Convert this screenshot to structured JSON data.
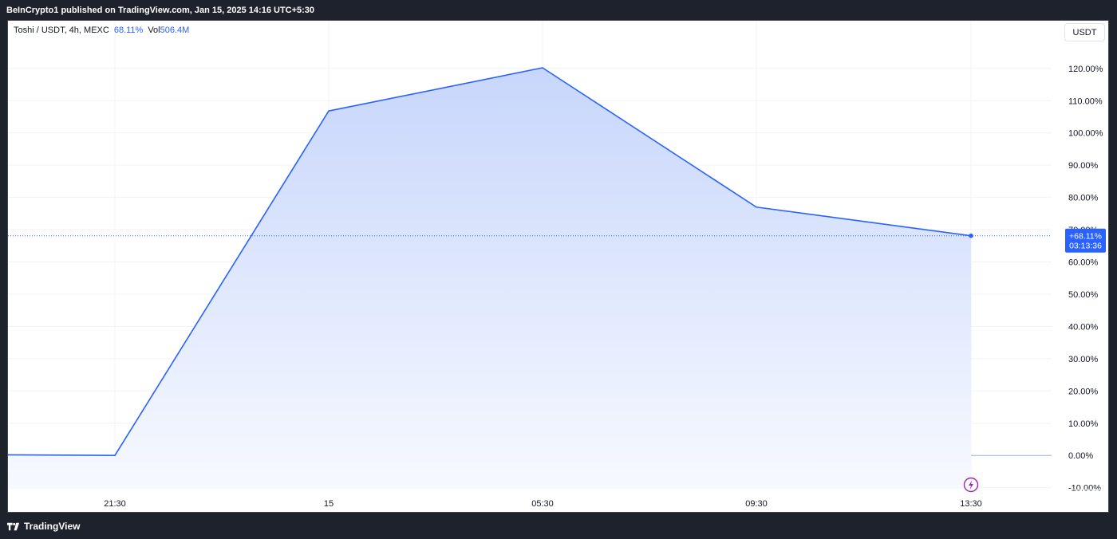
{
  "header": {
    "published_text": "BeInCrypto1 published on TradingView.com, Jan 15, 2025 14:16 UTC+5:30"
  },
  "legend": {
    "symbol": "Toshi / USDT, 4h, MEXC",
    "change": "68.11%",
    "vol_label": "Vol",
    "vol_value": "506.4M"
  },
  "currency_button": "USDT",
  "price_label": {
    "value": "+68.11%",
    "countdown": "03:13:36"
  },
  "footer": {
    "brand": "TradingView"
  },
  "colors": {
    "line": "#2962ff",
    "area_top": "#c7d6fb",
    "area_bottom": "#f7f9ff",
    "badge": "#2962ff",
    "event_icon": "#9c27b0"
  },
  "event_icon": "lightning-icon",
  "chart_data": {
    "type": "area",
    "x": [
      "",
      "21:30",
      "15",
      "05:30",
      "09:30",
      "13:30"
    ],
    "values": [
      0.2,
      0.0,
      106.8,
      120.2,
      77.0,
      68.11
    ],
    "x_tick_labels": [
      "21:30",
      "15",
      "05:30",
      "09:30",
      "13:30"
    ],
    "y_tick_labels": [
      "-10.00%",
      "0.00%",
      "10.00%",
      "20.00%",
      "30.00%",
      "40.00%",
      "50.00%",
      "60.00%",
      "70.00%",
      "80.00%",
      "90.00%",
      "100.00%",
      "110.00%",
      "120.00%"
    ],
    "y_ticks": [
      -10,
      0,
      10,
      20,
      30,
      40,
      50,
      60,
      70,
      80,
      90,
      100,
      110,
      120
    ],
    "ylim": [
      -10,
      120
    ],
    "last_value": 68.11,
    "grid": true,
    "unit": "%"
  }
}
